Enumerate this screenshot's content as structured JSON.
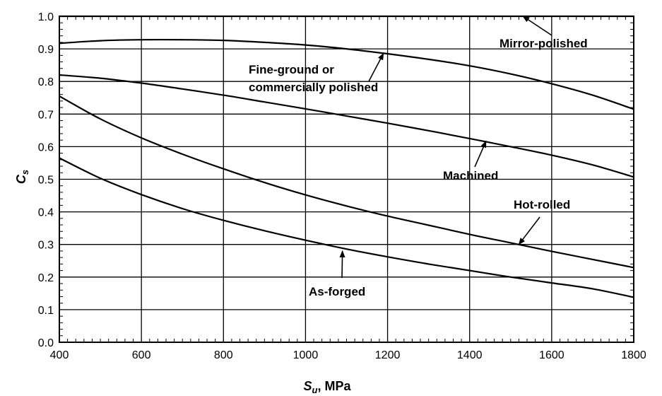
{
  "chart_data": {
    "type": "line",
    "xlabel": {
      "symbol": "S",
      "subscript": "u",
      "rest": ", MPa"
    },
    "ylabel": {
      "symbol": "C",
      "subscript": "s"
    },
    "xlim": [
      400,
      1800
    ],
    "ylim": [
      0.0,
      1.0
    ],
    "xticks": [
      400,
      600,
      800,
      1000,
      1200,
      1400,
      1600,
      1800
    ],
    "xtick_labels": [
      "400",
      "600",
      "800",
      "1000",
      "1200",
      "1400",
      "1600",
      "1800"
    ],
    "yticks": [
      0.0,
      0.1,
      0.2,
      0.3,
      0.4,
      0.5,
      0.6,
      0.7,
      0.8,
      0.9,
      1.0
    ],
    "ytick_labels": [
      "0.0",
      "0.1",
      "0.2",
      "0.3",
      "0.4",
      "0.5",
      "0.6",
      "0.7",
      "0.8",
      "0.9",
      "1.0"
    ],
    "grid": true,
    "series": [
      {
        "label": "Mirror-polished",
        "x": [
          400,
          1800
        ],
        "values": [
          1.0,
          1.0
        ]
      },
      {
        "label": "Fine-ground or commercially polished",
        "x": [
          400,
          500,
          600,
          700,
          800,
          900,
          1000,
          1100,
          1200,
          1300,
          1400,
          1500,
          1600,
          1700,
          1800
        ],
        "values": [
          0.917,
          0.925,
          0.928,
          0.928,
          0.926,
          0.92,
          0.912,
          0.9,
          0.885,
          0.868,
          0.848,
          0.823,
          0.793,
          0.758,
          0.715
        ]
      },
      {
        "label": "Machined",
        "x": [
          400,
          500,
          600,
          700,
          800,
          900,
          1000,
          1100,
          1200,
          1300,
          1400,
          1500,
          1600,
          1700,
          1800
        ],
        "values": [
          0.82,
          0.81,
          0.795,
          0.777,
          0.758,
          0.737,
          0.716,
          0.694,
          0.672,
          0.649,
          0.625,
          0.6,
          0.574,
          0.544,
          0.507
        ]
      },
      {
        "label": "Hot-rolled",
        "x": [
          400,
          500,
          600,
          700,
          800,
          900,
          1000,
          1100,
          1200,
          1300,
          1400,
          1500,
          1600,
          1700,
          1800
        ],
        "values": [
          0.755,
          0.685,
          0.627,
          0.577,
          0.532,
          0.49,
          0.452,
          0.418,
          0.387,
          0.359,
          0.331,
          0.305,
          0.279,
          0.254,
          0.229
        ]
      },
      {
        "label": "As-forged",
        "x": [
          400,
          500,
          600,
          700,
          800,
          900,
          1000,
          1100,
          1200,
          1300,
          1400,
          1500,
          1600,
          1700,
          1800
        ],
        "values": [
          0.565,
          0.503,
          0.453,
          0.41,
          0.374,
          0.342,
          0.313,
          0.286,
          0.262,
          0.24,
          0.22,
          0.2,
          0.182,
          0.164,
          0.138
        ]
      }
    ],
    "annotations": [
      {
        "lines": [
          "Mirror-polished"
        ],
        "arrow_to": [
          1530,
          1.0
        ]
      },
      {
        "lines": [
          "Fine-ground or",
          "commercially polished"
        ],
        "arrow_to": [
          1190,
          0.886
        ]
      },
      {
        "lines": [
          "Machined"
        ],
        "arrow_to": [
          1440,
          0.617
        ]
      },
      {
        "lines": [
          "Hot-rolled"
        ],
        "arrow_to": [
          1520,
          0.3
        ]
      },
      {
        "lines": [
          "As-forged"
        ],
        "arrow_to": [
          1090,
          0.28
        ]
      }
    ]
  }
}
